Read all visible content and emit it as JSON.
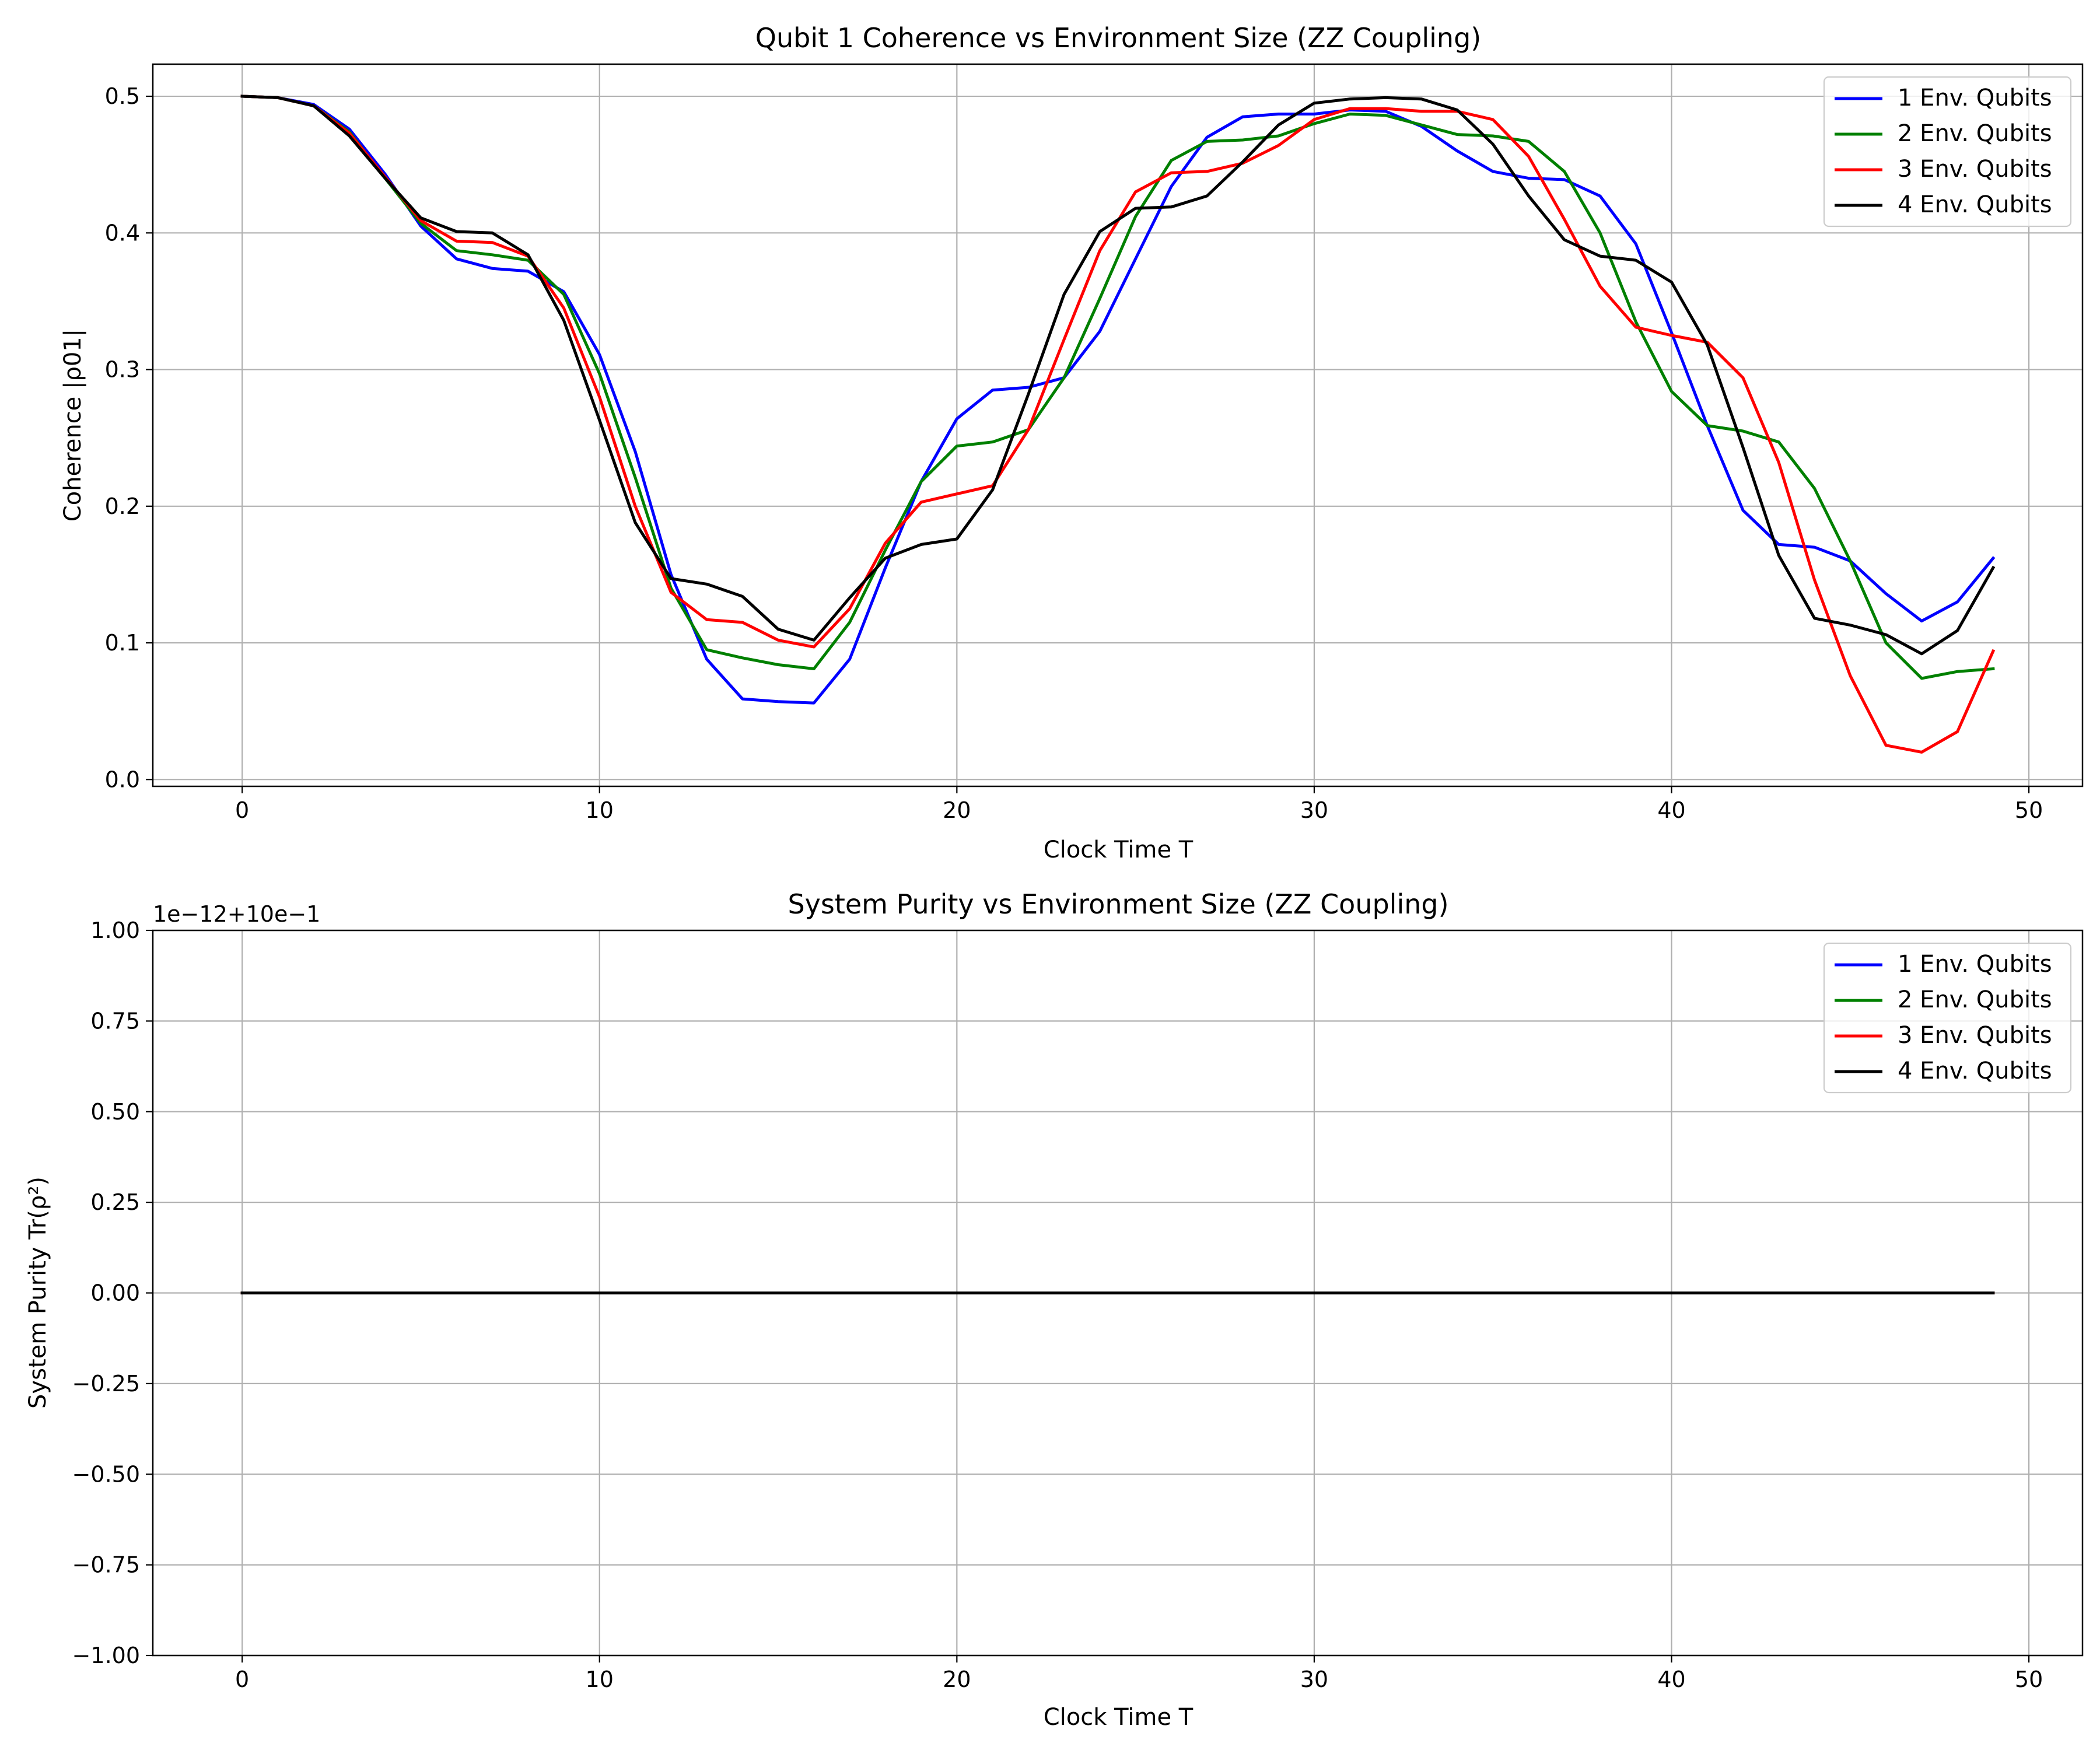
{
  "chart_data": [
    {
      "type": "line",
      "title": "Qubit 1 Coherence vs Environment Size (ZZ Coupling)",
      "xlabel": "Clock Time T",
      "ylabel": "Coherence |ρ01|",
      "xlim": [
        -2.5,
        51.5
      ],
      "ylim": [
        -0.005,
        0.5235
      ],
      "xticks": [
        0,
        10,
        20,
        30,
        40,
        50
      ],
      "xtick_labels": [
        "0",
        "10",
        "20",
        "30",
        "40",
        "50"
      ],
      "yticks": [
        0.0,
        0.1,
        0.2,
        0.3,
        0.4,
        0.5
      ],
      "ytick_labels": [
        "0.0",
        "0.1",
        "0.2",
        "0.3",
        "0.4",
        "0.5"
      ],
      "offset_text": "",
      "grid": true,
      "legend": "top-right",
      "x": [
        0,
        1,
        2,
        3,
        4,
        5,
        6,
        7,
        8,
        9,
        10,
        11,
        12,
        13,
        14,
        15,
        16,
        17,
        18,
        19,
        20,
        21,
        22,
        23,
        24,
        25,
        26,
        27,
        28,
        29,
        30,
        31,
        32,
        33,
        34,
        35,
        36,
        37,
        38,
        39,
        40,
        41,
        42,
        43,
        44,
        45,
        46,
        47,
        48,
        49
      ],
      "series": [
        {
          "name": "1 Env. Qubits",
          "color": "#0000ff",
          "values": [
            0.5,
            0.499,
            0.494,
            0.476,
            0.443,
            0.405,
            0.381,
            0.374,
            0.372,
            0.357,
            0.311,
            0.24,
            0.15,
            0.088,
            0.059,
            0.057,
            0.056,
            0.088,
            0.155,
            0.218,
            0.264,
            0.285,
            0.287,
            0.294,
            0.328,
            0.381,
            0.434,
            0.47,
            0.485,
            0.487,
            0.487,
            0.49,
            0.489,
            0.478,
            0.46,
            0.445,
            0.44,
            0.439,
            0.427,
            0.392,
            0.327,
            0.259,
            0.197,
            0.172,
            0.17,
            0.16,
            0.136,
            0.116,
            0.13,
            0.162
          ]
        },
        {
          "name": "2 Env. Qubits",
          "color": "#008000",
          "values": [
            0.5,
            0.499,
            0.493,
            0.474,
            0.44,
            0.407,
            0.387,
            0.384,
            0.38,
            0.355,
            0.297,
            0.221,
            0.14,
            0.095,
            0.089,
            0.084,
            0.081,
            0.115,
            0.168,
            0.218,
            0.244,
            0.247,
            0.256,
            0.294,
            0.352,
            0.412,
            0.453,
            0.467,
            0.468,
            0.471,
            0.48,
            0.487,
            0.486,
            0.479,
            0.472,
            0.471,
            0.467,
            0.445,
            0.4,
            0.335,
            0.284,
            0.259,
            0.255,
            0.247,
            0.213,
            0.16,
            0.1,
            0.074,
            0.079,
            0.081
          ]
        },
        {
          "name": "3 Env. Qubits",
          "color": "#ff0000",
          "values": [
            0.5,
            0.499,
            0.493,
            0.473,
            0.441,
            0.409,
            0.394,
            0.393,
            0.383,
            0.345,
            0.28,
            0.2,
            0.137,
            0.117,
            0.115,
            0.102,
            0.097,
            0.125,
            0.173,
            0.203,
            0.209,
            0.215,
            0.256,
            0.322,
            0.387,
            0.43,
            0.444,
            0.445,
            0.451,
            0.464,
            0.483,
            0.491,
            0.491,
            0.489,
            0.489,
            0.483,
            0.456,
            0.41,
            0.361,
            0.331,
            0.325,
            0.32,
            0.294,
            0.232,
            0.146,
            0.076,
            0.025,
            0.02,
            0.035,
            0.094
          ]
        },
        {
          "name": "4 Env. Qubits",
          "color": "#000000",
          "values": [
            0.5,
            0.499,
            0.493,
            0.471,
            0.44,
            0.411,
            0.401,
            0.4,
            0.384,
            0.336,
            0.263,
            0.188,
            0.147,
            0.143,
            0.134,
            0.11,
            0.102,
            0.133,
            0.162,
            0.172,
            0.176,
            0.212,
            0.282,
            0.355,
            0.401,
            0.418,
            0.419,
            0.427,
            0.452,
            0.479,
            0.495,
            0.498,
            0.499,
            0.498,
            0.49,
            0.465,
            0.427,
            0.395,
            0.383,
            0.38,
            0.364,
            0.318,
            0.243,
            0.164,
            0.118,
            0.113,
            0.106,
            0.092,
            0.109,
            0.155
          ]
        }
      ]
    },
    {
      "type": "line",
      "title": "System Purity vs Environment Size (ZZ Coupling)",
      "xlabel": "Clock Time T",
      "ylabel": "System Purity Tr(ρ²)",
      "xlim": [
        -2.5,
        51.5
      ],
      "ylim": [
        -1.0,
        1.0
      ],
      "xticks": [
        0,
        10,
        20,
        30,
        40,
        50
      ],
      "xtick_labels": [
        "0",
        "10",
        "20",
        "30",
        "40",
        "50"
      ],
      "yticks": [
        -1.0,
        -0.75,
        -0.5,
        -0.25,
        0.0,
        0.25,
        0.5,
        0.75,
        1.0
      ],
      "ytick_labels": [
        "−1.00",
        "−0.75",
        "−0.50",
        "−0.25",
        "0.00",
        "0.25",
        "0.50",
        "0.75",
        "1.00"
      ],
      "offset_text": "1e−12+10e−1",
      "grid": true,
      "legend": "top-right",
      "x": [
        0,
        1,
        2,
        3,
        4,
        5,
        6,
        7,
        8,
        9,
        10,
        11,
        12,
        13,
        14,
        15,
        16,
        17,
        18,
        19,
        20,
        21,
        22,
        23,
        24,
        25,
        26,
        27,
        28,
        29,
        30,
        31,
        32,
        33,
        34,
        35,
        36,
        37,
        38,
        39,
        40,
        41,
        42,
        43,
        44,
        45,
        46,
        47,
        48,
        49
      ],
      "series": [
        {
          "name": "1 Env. Qubits",
          "color": "#0000ff",
          "values": [
            0,
            0,
            0,
            0,
            0,
            0,
            0,
            0,
            0,
            0,
            0,
            0,
            0,
            0,
            0,
            0,
            0,
            0,
            0,
            0,
            0,
            0,
            0,
            0,
            0,
            0,
            0,
            0,
            0,
            0,
            0,
            0,
            0,
            0,
            0,
            0,
            0,
            0,
            0,
            0,
            0,
            0,
            0,
            0,
            0,
            0,
            0,
            0,
            0,
            0
          ]
        },
        {
          "name": "2 Env. Qubits",
          "color": "#008000",
          "values": [
            0,
            0,
            0,
            0,
            0,
            0,
            0,
            0,
            0,
            0,
            0,
            0,
            0,
            0,
            0,
            0,
            0,
            0,
            0,
            0,
            0,
            0,
            0,
            0,
            0,
            0,
            0,
            0,
            0,
            0,
            0,
            0,
            0,
            0,
            0,
            0,
            0,
            0,
            0,
            0,
            0,
            0,
            0,
            0,
            0,
            0,
            0,
            0,
            0,
            0
          ]
        },
        {
          "name": "3 Env. Qubits",
          "color": "#ff0000",
          "values": [
            0,
            0,
            0,
            0,
            0,
            0,
            0,
            0,
            0,
            0,
            0,
            0,
            0,
            0,
            0,
            0,
            0,
            0,
            0,
            0,
            0,
            0,
            0,
            0,
            0,
            0,
            0,
            0,
            0,
            0,
            0,
            0,
            0,
            0,
            0,
            0,
            0,
            0,
            0,
            0,
            0,
            0,
            0,
            0,
            0,
            0,
            0,
            0,
            0,
            0
          ]
        },
        {
          "name": "4 Env. Qubits",
          "color": "#000000",
          "values": [
            0,
            0,
            0,
            0,
            0,
            0,
            0,
            0,
            0,
            0,
            0,
            0,
            0,
            0,
            0,
            0,
            0,
            0,
            0,
            0,
            0,
            0,
            0,
            0,
            0,
            0,
            0,
            0,
            0,
            0,
            0,
            0,
            0,
            0,
            0,
            0,
            0,
            0,
            0,
            0,
            0,
            0,
            0,
            0,
            0,
            0,
            0,
            0,
            0,
            0
          ]
        }
      ]
    }
  ]
}
